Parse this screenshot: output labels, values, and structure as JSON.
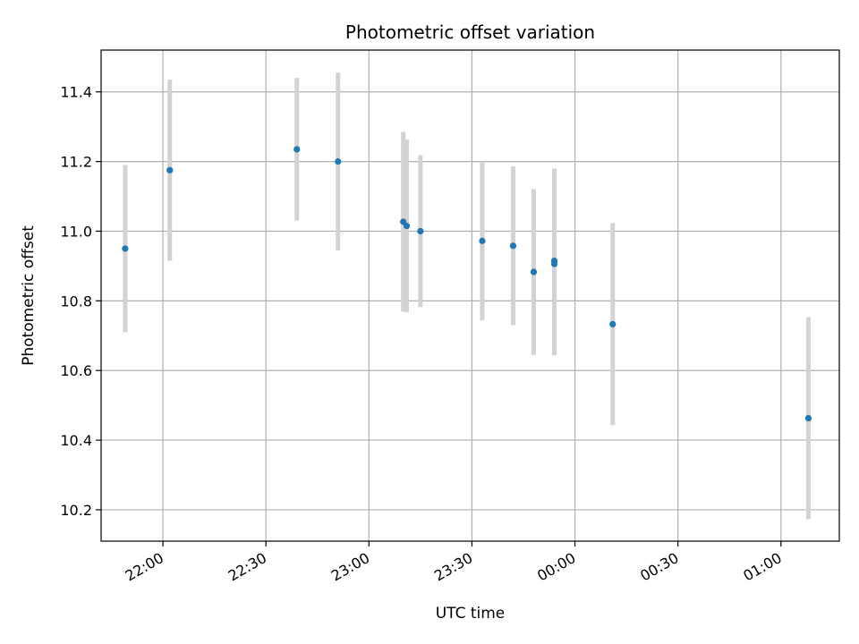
{
  "chart_data": {
    "type": "scatter",
    "title": "Photometric offset variation",
    "xlabel": "UTC time",
    "ylabel": "Photometric offset",
    "grid": true,
    "xlim": [
      "21:42",
      "01:17"
    ],
    "ylim": [
      10.11,
      11.52
    ],
    "x_ticks": [
      "22:00",
      "22:30",
      "23:00",
      "23:30",
      "00:00",
      "00:30",
      "01:00"
    ],
    "y_ticks": [
      "10.2",
      "10.4",
      "10.6",
      "10.8",
      "11.0",
      "11.2",
      "11.4"
    ],
    "colors": {
      "point": "#1f77b4",
      "errorbar": "#d3d3d3",
      "grid": "#b0b0b0"
    },
    "series": [
      {
        "points": [
          {
            "x": "21:49",
            "y": 10.95,
            "yerr": 0.24
          },
          {
            "x": "22:02",
            "y": 11.175,
            "yerr": 0.26
          },
          {
            "x": "22:39",
            "y": 11.235,
            "yerr": 0.205
          },
          {
            "x": "22:51",
            "y": 11.2,
            "yerr": 0.255
          },
          {
            "x": "23:10",
            "y": 11.027,
            "yerr": 0.258
          },
          {
            "x": "23:11",
            "y": 11.015,
            "yerr": 0.248
          },
          {
            "x": "23:15",
            "y": 11.0,
            "yerr": 0.218
          },
          {
            "x": "23:33",
            "y": 10.972,
            "yerr": 0.228
          },
          {
            "x": "23:42",
            "y": 10.958,
            "yerr": 0.228
          },
          {
            "x": "23:48",
            "y": 10.883,
            "yerr": 0.238
          },
          {
            "x": "23:54",
            "y": 10.915,
            "yerr": 0.265
          },
          {
            "x": "23:54",
            "y": 10.906,
            "yerr": 0.262
          },
          {
            "x": "00:11",
            "y": 10.733,
            "yerr": 0.29
          },
          {
            "x": "01:08",
            "y": 10.463,
            "yerr": 0.29
          }
        ]
      }
    ]
  }
}
